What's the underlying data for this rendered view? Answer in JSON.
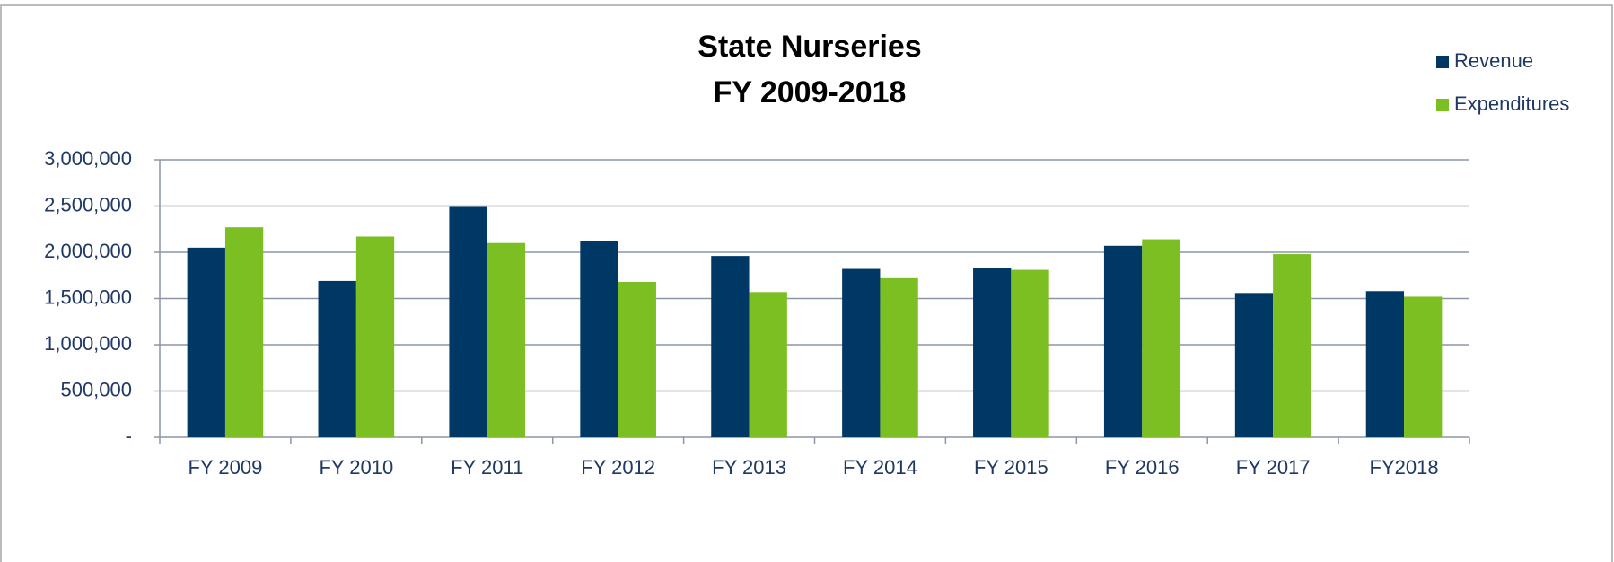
{
  "chart_data": {
    "type": "bar",
    "title": "State Nurseries",
    "subtitle": "FY 2009-2018",
    "categories": [
      "FY 2009",
      "FY 2010",
      "FY 2011",
      "FY 2012",
      "FY 2013",
      "FY 2014",
      "FY 2015",
      "FY 2016",
      "FY 2017",
      "FY2018"
    ],
    "series": [
      {
        "name": "Revenue",
        "color": "#003865",
        "values": [
          2050000,
          1690000,
          2490000,
          2120000,
          1960000,
          1820000,
          1830000,
          2070000,
          1560000,
          1580000
        ]
      },
      {
        "name": "Expenditures",
        "color": "#7bbf22",
        "values": [
          2270000,
          2170000,
          2100000,
          1680000,
          1570000,
          1720000,
          1810000,
          2140000,
          1980000,
          1520000
        ]
      }
    ],
    "ylim": [
      0,
      3000000
    ],
    "yticks": [
      {
        "value": 0,
        "label": "-"
      },
      {
        "value": 500000,
        "label": "500,000"
      },
      {
        "value": 1000000,
        "label": "1,000,000"
      },
      {
        "value": 1500000,
        "label": "1,500,000"
      },
      {
        "value": 2000000,
        "label": "2,000,000"
      },
      {
        "value": 2500000,
        "label": "2,500,000"
      },
      {
        "value": 3000000,
        "label": "3,000,000"
      }
    ],
    "grid": true,
    "legend": "top-right"
  }
}
